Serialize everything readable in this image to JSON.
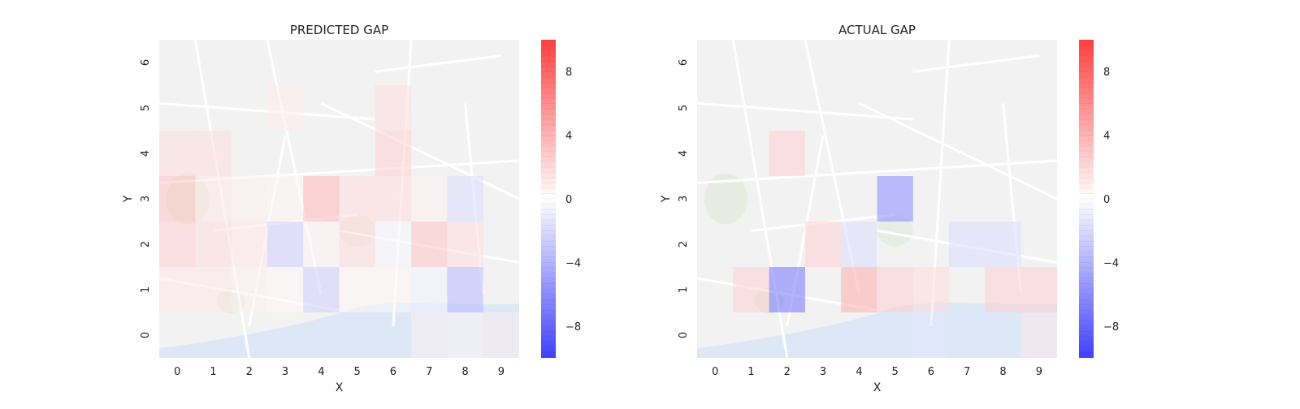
{
  "colorbar": {
    "min": -10,
    "max": 10,
    "ticks": [
      -8,
      -4,
      0,
      4,
      8
    ],
    "tick_labels": [
      "−8",
      "−4",
      "0",
      "4",
      "8"
    ],
    "colors": {
      "low": "#0000ff",
      "mid": "#ffffff",
      "high": "#ff0000"
    }
  },
  "chart_data": [
    {
      "type": "heatmap",
      "title": "PREDICTED GAP",
      "xlabel": "X",
      "ylabel": "Y",
      "x_ticks": [
        "0",
        "1",
        "2",
        "3",
        "4",
        "5",
        "6",
        "7",
        "8",
        "9"
      ],
      "y_ticks": [
        "0",
        "1",
        "2",
        "3",
        "4",
        "5",
        "6"
      ],
      "background": "street map",
      "cells": [
        {
          "x": 0,
          "y": 1,
          "v": 1
        },
        {
          "x": 1,
          "y": 1,
          "v": 1
        },
        {
          "x": 2,
          "y": 1,
          "v": 0.6
        },
        {
          "x": 3,
          "y": 1,
          "v": 0.3
        },
        {
          "x": 4,
          "y": 1,
          "v": -2
        },
        {
          "x": 5,
          "y": 1,
          "v": 0.3
        },
        {
          "x": 6,
          "y": 1,
          "v": 0.3
        },
        {
          "x": 7,
          "y": 1,
          "v": -0.5
        },
        {
          "x": 8,
          "y": 1,
          "v": -3
        },
        {
          "x": 0,
          "y": 2,
          "v": 2
        },
        {
          "x": 1,
          "y": 2,
          "v": 1.5
        },
        {
          "x": 2,
          "y": 2,
          "v": 1
        },
        {
          "x": 3,
          "y": 2,
          "v": -2
        },
        {
          "x": 4,
          "y": 2,
          "v": 0.5
        },
        {
          "x": 5,
          "y": 2,
          "v": 1.5
        },
        {
          "x": 6,
          "y": 2,
          "v": -0.3
        },
        {
          "x": 7,
          "y": 2,
          "v": 2.5
        },
        {
          "x": 8,
          "y": 2,
          "v": 1.5
        },
        {
          "x": 0,
          "y": 3,
          "v": 2.5
        },
        {
          "x": 1,
          "y": 3,
          "v": 1
        },
        {
          "x": 2,
          "y": 3,
          "v": 0.7
        },
        {
          "x": 3,
          "y": 3,
          "v": 0.4
        },
        {
          "x": 4,
          "y": 3,
          "v": 3
        },
        {
          "x": 5,
          "y": 3,
          "v": 1.5
        },
        {
          "x": 6,
          "y": 3,
          "v": 1.5
        },
        {
          "x": 7,
          "y": 3,
          "v": 0.5
        },
        {
          "x": 8,
          "y": 3,
          "v": -1.5
        },
        {
          "x": 0,
          "y": 4,
          "v": 1.5
        },
        {
          "x": 1,
          "y": 4,
          "v": 1.5
        },
        {
          "x": 6,
          "y": 4,
          "v": 2
        },
        {
          "x": 3,
          "y": 5,
          "v": 0.8
        },
        {
          "x": 6,
          "y": 5,
          "v": 1.5
        },
        {
          "x": 7,
          "y": 0,
          "v": 0.6
        },
        {
          "x": 8,
          "y": 0,
          "v": 0.4
        },
        {
          "x": 9,
          "y": 0,
          "v": 0.8
        }
      ]
    },
    {
      "type": "heatmap",
      "title": "ACTUAL GAP",
      "xlabel": "X",
      "ylabel": "Y",
      "x_ticks": [
        "0",
        "1",
        "2",
        "3",
        "4",
        "5",
        "6",
        "7",
        "8",
        "9"
      ],
      "y_ticks": [
        "0",
        "1",
        "2",
        "3",
        "4",
        "5",
        "6"
      ],
      "background": "street map",
      "cells": [
        {
          "x": 2,
          "y": 4,
          "v": 2
        },
        {
          "x": 5,
          "y": 3,
          "v": -5
        },
        {
          "x": 3,
          "y": 2,
          "v": 2
        },
        {
          "x": 4,
          "y": 2,
          "v": -1.5
        },
        {
          "x": 7,
          "y": 2,
          "v": -1.5
        },
        {
          "x": 8,
          "y": 2,
          "v": -1.5
        },
        {
          "x": 1,
          "y": 1,
          "v": 2
        },
        {
          "x": 2,
          "y": 1,
          "v": -6
        },
        {
          "x": 4,
          "y": 1,
          "v": 3.5
        },
        {
          "x": 5,
          "y": 1,
          "v": 2
        },
        {
          "x": 6,
          "y": 1,
          "v": 1.5
        },
        {
          "x": 8,
          "y": 1,
          "v": 2
        },
        {
          "x": 9,
          "y": 1,
          "v": 2
        },
        {
          "x": 6,
          "y": 0,
          "v": -1
        },
        {
          "x": 9,
          "y": 0,
          "v": 1
        }
      ]
    }
  ]
}
